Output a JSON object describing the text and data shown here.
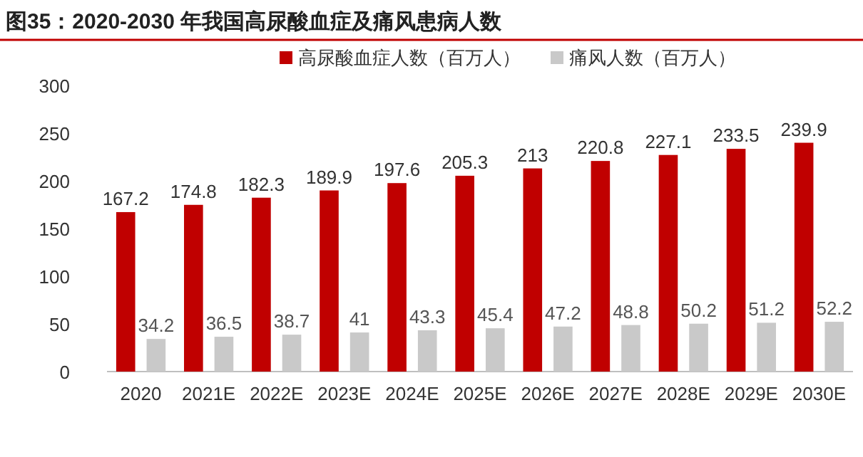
{
  "chart_data": {
    "type": "bar",
    "title": "图35：2020-2030 年我国高尿酸血症及痛风患病人数",
    "categories": [
      "2020",
      "2021E",
      "2022E",
      "2023E",
      "2024E",
      "2025E",
      "2026E",
      "2027E",
      "2028E",
      "2029E",
      "2030E"
    ],
    "series": [
      {
        "name": "高尿酸血症人数（百万人）",
        "color": "#c00000",
        "values": [
          167.2,
          174.8,
          182.3,
          189.9,
          197.6,
          205.3,
          213,
          220.8,
          227.1,
          233.5,
          239.9
        ]
      },
      {
        "name": "痛风人数（百万人）",
        "color": "#c9c9c9",
        "values": [
          34.2,
          36.5,
          38.7,
          41,
          43.3,
          45.4,
          47.2,
          48.8,
          50.2,
          51.2,
          52.2
        ]
      }
    ],
    "ylim": [
      0,
      300
    ],
    "yticks": [
      0,
      50,
      100,
      150,
      200,
      250,
      300
    ],
    "data_labels": true,
    "legend": "top"
  }
}
